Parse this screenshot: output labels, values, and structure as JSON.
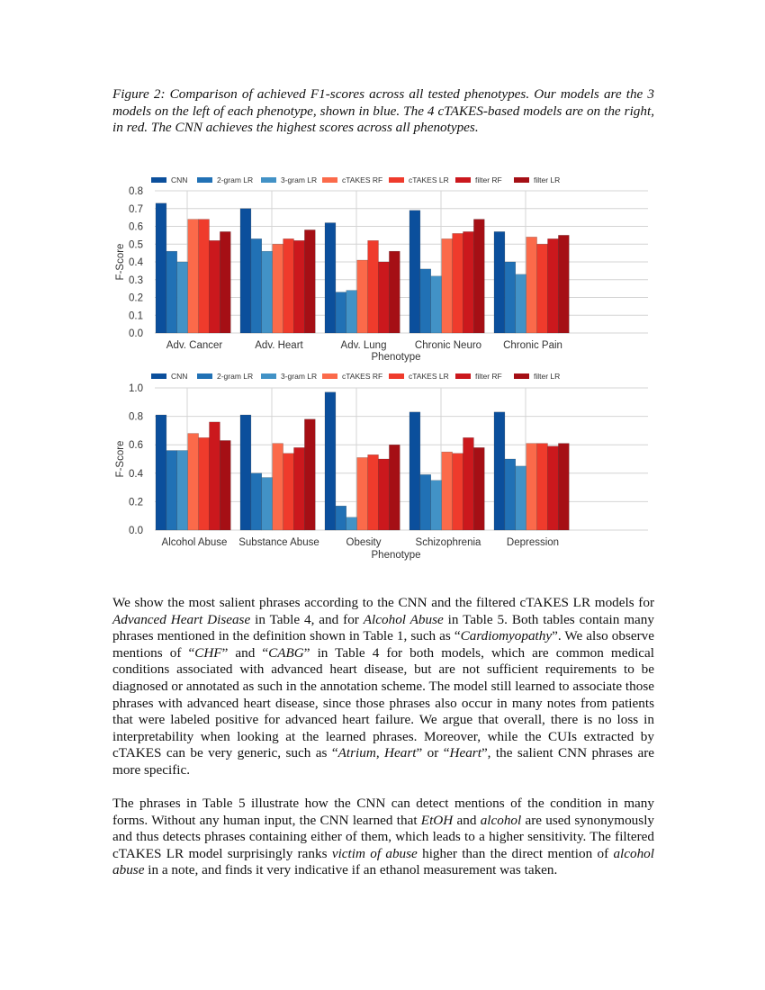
{
  "caption": "Figure 2: Comparison of achieved F1-scores across all tested phenotypes. Our models are the 3 models on the left of each phenotype, shown in blue. The 4 cTAKES-based models are on the right, in red. The CNN achieves the highest scores across all phenotypes.",
  "paragraphs": [
    [
      {
        "t": "We show the most salient phrases according to the CNN and the filtered cTAKES LR models for "
      },
      {
        "t": "Advanced Heart Disease",
        "i": true
      },
      {
        "t": " in Table 4, and for "
      },
      {
        "t": "Alcohol Abuse",
        "i": true
      },
      {
        "t": " in Table 5. Both tables contain many phrases mentioned in the definition shown in Table 1, such as “"
      },
      {
        "t": "Cardiomyopathy",
        "i": true
      },
      {
        "t": "”. We also observe mentions of “"
      },
      {
        "t": "CHF",
        "i": true
      },
      {
        "t": "” and “"
      },
      {
        "t": "CABG",
        "i": true
      },
      {
        "t": "” in Table 4 for both models, which are common medical conditions associated with advanced heart disease, but are not sufficient requirements to be diagnosed or annotated as such in the annotation scheme. The model still learned to associate those phrases with advanced heart disease, since those phrases also occur in many notes from patients that were labeled positive for advanced heart failure. We argue that overall, there is no loss in interpretability when looking at the learned phrases. Moreover, while the CUIs extracted by cTAKES can be very generic, such as “"
      },
      {
        "t": "Atrium, Heart",
        "i": true
      },
      {
        "t": "” or “"
      },
      {
        "t": "Heart",
        "i": true
      },
      {
        "t": "”, the salient CNN phrases are more specific."
      }
    ],
    [
      {
        "t": "The phrases in Table 5 illustrate how the CNN can detect mentions of the condition in many forms. Without any human input, the CNN learned that "
      },
      {
        "t": "EtOH",
        "i": true
      },
      {
        "t": " and "
      },
      {
        "t": "alcohol",
        "i": true
      },
      {
        "t": " are used synonymously and thus detects phrases containing either of them, which leads to a higher sensitivity. The filtered cTAKES LR model surprisingly ranks "
      },
      {
        "t": "victim of abuse",
        "i": true
      },
      {
        "t": " higher than the direct mention of "
      },
      {
        "t": "alcohol abuse",
        "i": true
      },
      {
        "t": " in a note, and finds it very indicative if an ethanol measurement was taken."
      }
    ]
  ],
  "chart_data": [
    {
      "type": "bar",
      "xlabel": "Phenotype",
      "ylabel": "F-Score",
      "ylim": [
        0,
        0.8
      ],
      "yticks": [
        "0.0",
        "0.1",
        "0.2",
        "0.3",
        "0.4",
        "0.5",
        "0.6",
        "0.7",
        "0.8"
      ],
      "grid": true,
      "legend": "top",
      "categories": [
        "Adv. Cancer",
        "Adv. Heart",
        "Adv. Lung",
        "Chronic Neuro",
        "Chronic Pain"
      ],
      "series": [
        {
          "name": "CNN",
          "color": "#0b4f9c",
          "values": [
            0.73,
            0.7,
            0.62,
            0.69,
            0.57
          ]
        },
        {
          "name": "2-gram LR",
          "color": "#2171b5",
          "values": [
            0.46,
            0.53,
            0.23,
            0.36,
            0.4
          ]
        },
        {
          "name": "3-gram LR",
          "color": "#4292c6",
          "values": [
            0.4,
            0.46,
            0.24,
            0.32,
            0.33
          ]
        },
        {
          "name": "cTAKES RF",
          "color": "#fb6a4a",
          "values": [
            0.64,
            0.5,
            0.41,
            0.53,
            0.54
          ]
        },
        {
          "name": "cTAKES LR",
          "color": "#ef3b2c",
          "values": [
            0.64,
            0.53,
            0.52,
            0.56,
            0.5
          ]
        },
        {
          "name": "filter RF",
          "color": "#cb181d",
          "values": [
            0.52,
            0.52,
            0.4,
            0.57,
            0.53
          ]
        },
        {
          "name": "filter LR",
          "color": "#a50f15",
          "values": [
            0.57,
            0.58,
            0.46,
            0.64,
            0.55
          ]
        }
      ]
    },
    {
      "type": "bar",
      "xlabel": "Phenotype",
      "ylabel": "F-Score",
      "ylim": [
        0,
        1.0
      ],
      "yticks": [
        "0.0",
        "0.2",
        "0.4",
        "0.6",
        "0.8",
        "1.0"
      ],
      "grid": true,
      "legend": "top",
      "categories": [
        "Alcohol Abuse",
        "Substance Abuse",
        "Obesity",
        "Schizophrenia",
        "Depression"
      ],
      "series": [
        {
          "name": "CNN",
          "color": "#0b4f9c",
          "values": [
            0.81,
            0.81,
            0.97,
            0.83,
            0.83
          ]
        },
        {
          "name": "2-gram LR",
          "color": "#2171b5",
          "values": [
            0.56,
            0.4,
            0.17,
            0.39,
            0.5
          ]
        },
        {
          "name": "3-gram LR",
          "color": "#4292c6",
          "values": [
            0.56,
            0.37,
            0.09,
            0.35,
            0.45
          ]
        },
        {
          "name": "cTAKES RF",
          "color": "#fb6a4a",
          "values": [
            0.68,
            0.61,
            0.51,
            0.55,
            0.61
          ]
        },
        {
          "name": "cTAKES LR",
          "color": "#ef3b2c",
          "values": [
            0.65,
            0.54,
            0.53,
            0.54,
            0.61
          ]
        },
        {
          "name": "filter RF",
          "color": "#cb181d",
          "values": [
            0.76,
            0.58,
            0.5,
            0.65,
            0.59
          ]
        },
        {
          "name": "filter LR",
          "color": "#a50f15",
          "values": [
            0.63,
            0.78,
            0.6,
            0.58,
            0.61
          ]
        }
      ]
    }
  ]
}
